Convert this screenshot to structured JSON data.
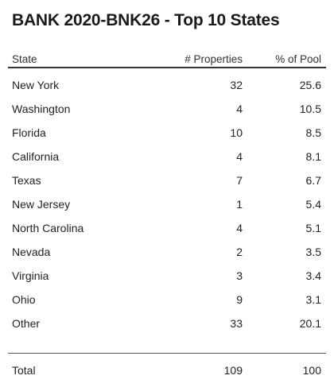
{
  "title": "BANK 2020-BNK26 - Top 10 States",
  "columns": {
    "state": "State",
    "properties": "# Properties",
    "pct_pool": "% of Pool"
  },
  "rows": [
    {
      "state": "New York",
      "properties": "32",
      "pct_pool": "25.6"
    },
    {
      "state": "Washington",
      "properties": "4",
      "pct_pool": "10.5"
    },
    {
      "state": "Florida",
      "properties": "10",
      "pct_pool": "8.5"
    },
    {
      "state": "California",
      "properties": "4",
      "pct_pool": "8.1"
    },
    {
      "state": "Texas",
      "properties": "7",
      "pct_pool": "6.7"
    },
    {
      "state": "New Jersey",
      "properties": "1",
      "pct_pool": "5.4"
    },
    {
      "state": "North Carolina",
      "properties": "4",
      "pct_pool": "5.1"
    },
    {
      "state": "Nevada",
      "properties": "2",
      "pct_pool": "3.5"
    },
    {
      "state": "Virginia",
      "properties": "3",
      "pct_pool": "3.4"
    },
    {
      "state": "Ohio",
      "properties": "9",
      "pct_pool": "3.1"
    },
    {
      "state": "Other",
      "properties": "33",
      "pct_pool": "20.1"
    }
  ],
  "total": {
    "label": "Total",
    "properties": "109",
    "pct_pool": "100"
  }
}
